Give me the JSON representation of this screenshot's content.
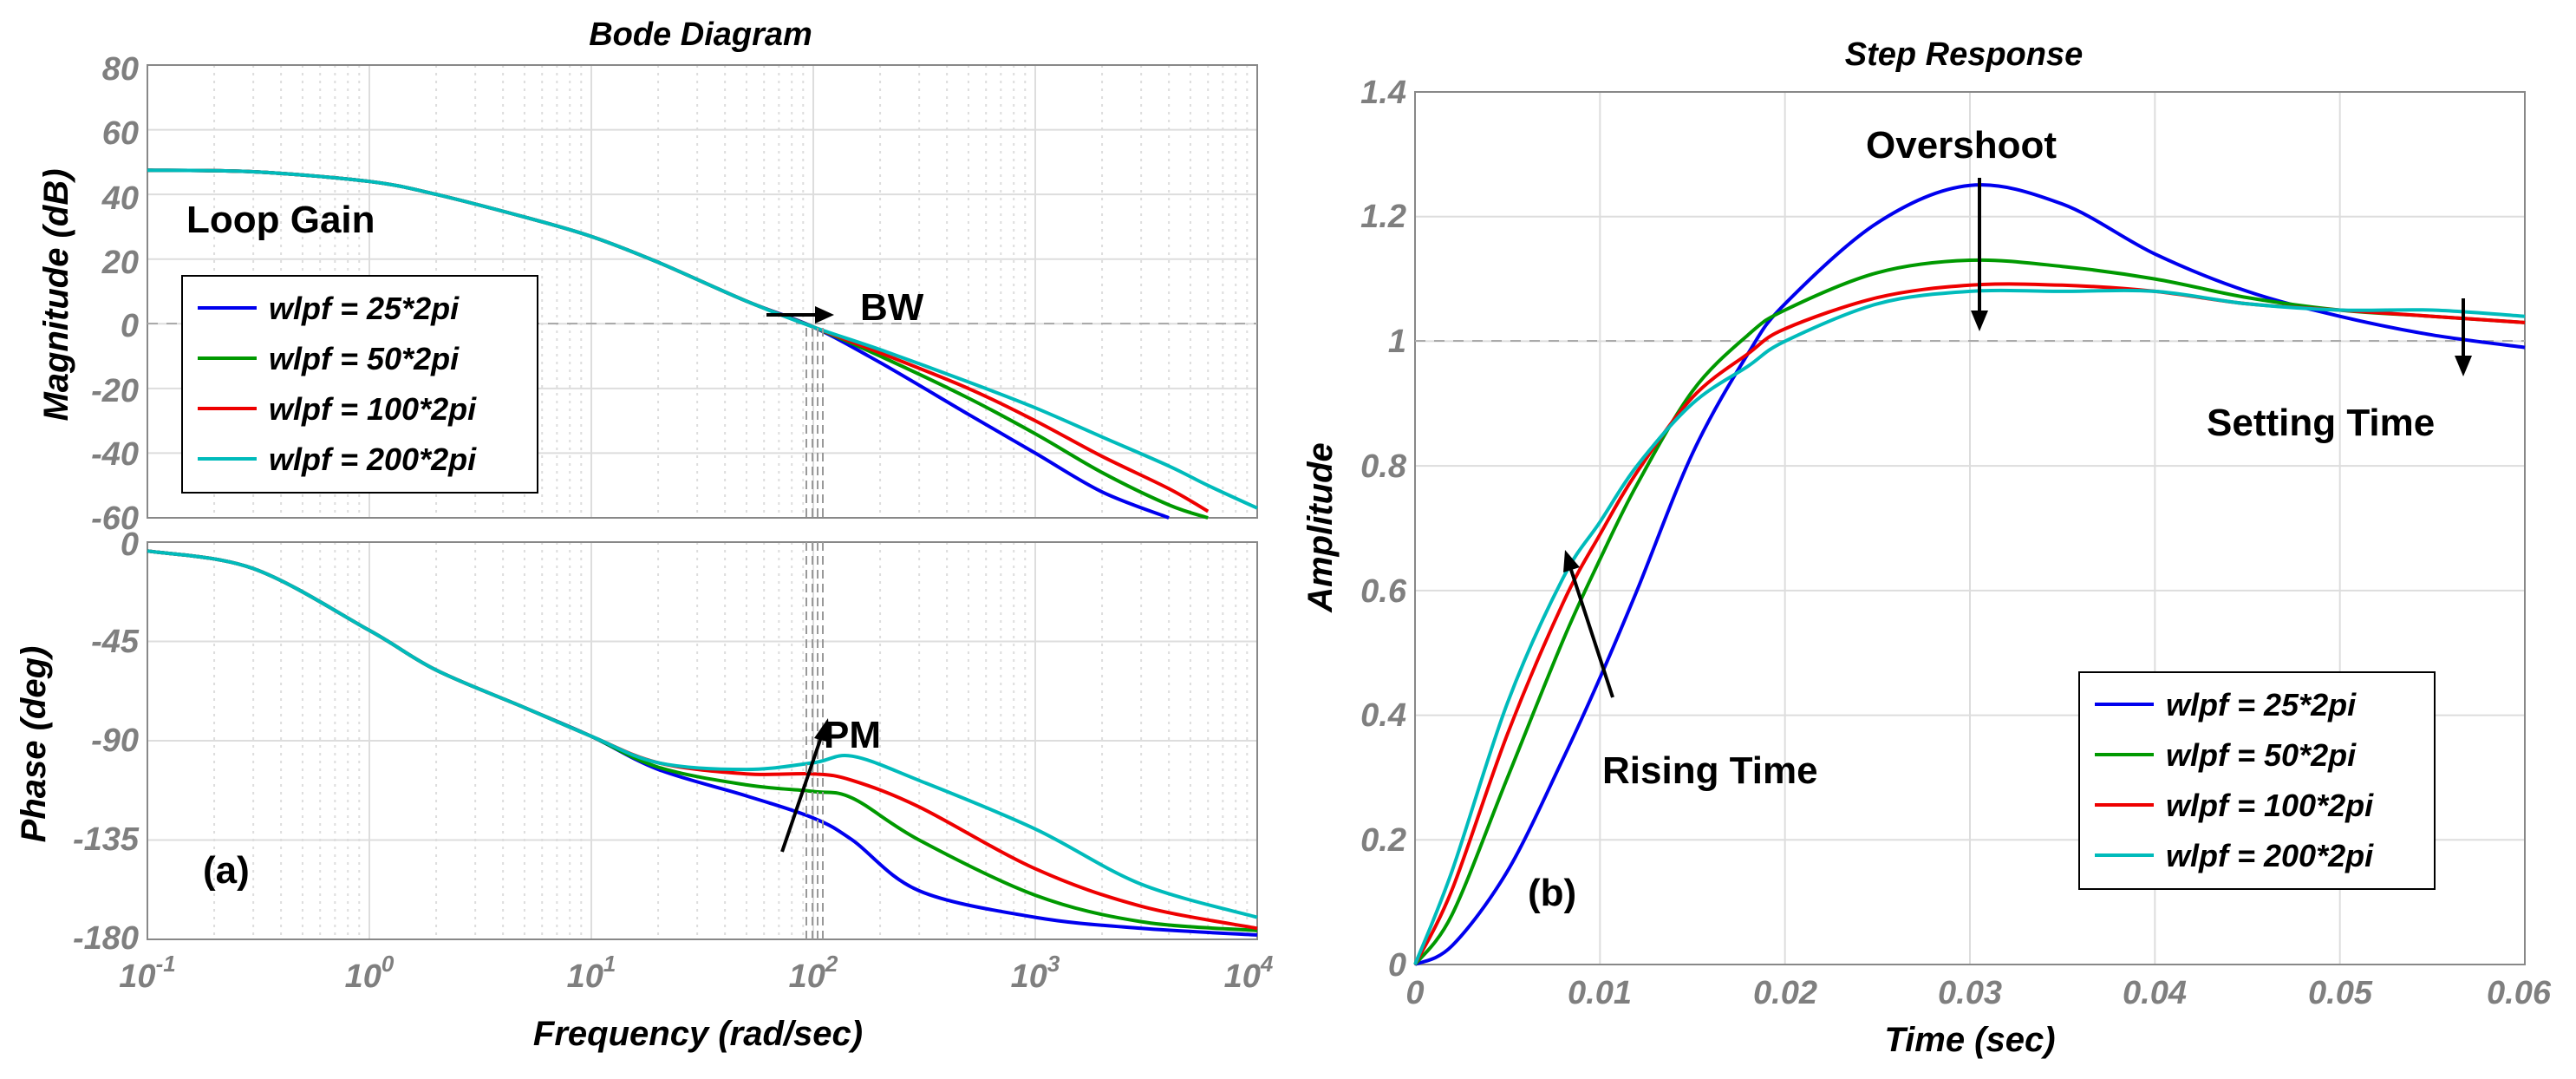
{
  "chart_data": [
    {
      "type": "line",
      "id": "bode-magnitude",
      "title": "Bode Diagram",
      "xlabel": "Frequency  (rad/sec)",
      "ylabel": "Magnitude (dB)",
      "xscale": "log",
      "xlim": [
        0.1,
        10000
      ],
      "ylim": [
        -60,
        80
      ],
      "yticks": [
        "80",
        "60",
        "40",
        "20",
        "0",
        "-20",
        "-40",
        "-60"
      ],
      "reference_line": {
        "y": 0
      },
      "x": [
        0.1,
        0.3,
        1,
        2,
        5,
        10,
        20,
        50,
        100,
        200,
        500,
        1000,
        2000,
        4000,
        6000,
        10000
      ],
      "series": [
        {
          "name": "wlpf = 25*2pi",
          "color": "#0000ee",
          "values": [
            47.5,
            47,
            44,
            40,
            33,
            27,
            19,
            7,
            -1,
            -12,
            -28,
            -40,
            -52,
            -60,
            null,
            null
          ]
        },
        {
          "name": "wlpf = 50*2pi",
          "color": "#009900",
          "values": [
            47.5,
            47,
            44,
            40,
            33,
            27,
            19,
            7,
            -1,
            -10,
            -23,
            -34,
            -46,
            -56,
            -60,
            null
          ]
        },
        {
          "name": "wlpf = 100*2pi",
          "color": "#ee0000",
          "values": [
            47.5,
            47,
            44,
            40,
            33,
            27,
            19,
            7,
            -1,
            -9,
            -20,
            -30,
            -41,
            -51,
            -58,
            null
          ]
        },
        {
          "name": "wlpf = 200*2pi",
          "color": "#00bbbb",
          "values": [
            47.5,
            47,
            44,
            40,
            33,
            27,
            19,
            7,
            -1,
            -8,
            -18,
            -26,
            -35,
            -44,
            -50,
            -57
          ]
        }
      ],
      "annotations": [
        "Loop Gain",
        "BW"
      ],
      "label": "(a)"
    },
    {
      "type": "line",
      "id": "bode-phase",
      "xlabel": "Frequency  (rad/sec)",
      "ylabel": "Phase (deg)",
      "xscale": "log",
      "xlim": [
        0.1,
        10000
      ],
      "ylim": [
        -180,
        0
      ],
      "yticks": [
        "0",
        "-45",
        "-90",
        "-135",
        "-180"
      ],
      "xticks": [
        {
          "base": "10",
          "exp": "-1"
        },
        {
          "base": "10",
          "exp": "0"
        },
        {
          "base": "10",
          "exp": "1"
        },
        {
          "base": "10",
          "exp": "2"
        },
        {
          "base": "10",
          "exp": "3"
        },
        {
          "base": "10",
          "exp": "4"
        }
      ],
      "x": [
        0.1,
        0.3,
        1,
        2,
        5,
        10,
        20,
        50,
        100,
        150,
        300,
        1000,
        3000,
        10000
      ],
      "series": [
        {
          "name": "wlpf = 25*2pi",
          "color": "#0000ee",
          "values": [
            -4,
            -12,
            -40,
            -58,
            -75,
            -88,
            -103,
            -115,
            -125,
            -135,
            -158,
            -170,
            -175,
            -178
          ]
        },
        {
          "name": "wlpf = 50*2pi",
          "color": "#009900",
          "values": [
            -4,
            -12,
            -40,
            -58,
            -75,
            -88,
            -102,
            -110,
            -113,
            -116,
            -135,
            -160,
            -172,
            -176
          ]
        },
        {
          "name": "wlpf = 100*2pi",
          "color": "#ee0000",
          "values": [
            -4,
            -12,
            -40,
            -58,
            -75,
            -88,
            -100,
            -105,
            -105,
            -108,
            -120,
            -148,
            -165,
            -175
          ]
        },
        {
          "name": "wlpf = 200*2pi",
          "color": "#00bbbb",
          "values": [
            -4,
            -12,
            -40,
            -58,
            -75,
            -88,
            -100,
            -103,
            -100,
            -97,
            -108,
            -130,
            -155,
            -170
          ]
        }
      ],
      "annotations": [
        "PM"
      ]
    },
    {
      "type": "line",
      "id": "step-response",
      "title": "Step Response",
      "xlabel": "Time (sec)",
      "ylabel": "Amplitude",
      "xlim": [
        0,
        0.06
      ],
      "ylim": [
        0,
        1.4
      ],
      "xticks": [
        "0",
        "0.01",
        "0.02",
        "0.03",
        "0.04",
        "0.05",
        "0.06"
      ],
      "yticks": [
        "0",
        "0.2",
        "0.4",
        "0.6",
        "0.8",
        "1",
        "1.2",
        "1.4"
      ],
      "reference_line": {
        "y": 1
      },
      "x": [
        0,
        0.002,
        0.005,
        0.008,
        0.01,
        0.012,
        0.015,
        0.018,
        0.02,
        0.025,
        0.03,
        0.035,
        0.04,
        0.045,
        0.05,
        0.055,
        0.06
      ],
      "series": [
        {
          "name": "wlpf = 25*2pi",
          "color": "#0000ee",
          "values": [
            0,
            0.03,
            0.15,
            0.33,
            0.46,
            0.6,
            0.82,
            0.98,
            1.06,
            1.19,
            1.25,
            1.22,
            1.14,
            1.08,
            1.04,
            1.01,
            0.99
          ]
        },
        {
          "name": "wlpf = 50*2pi",
          "color": "#009900",
          "values": [
            0,
            0.08,
            0.3,
            0.52,
            0.65,
            0.77,
            0.92,
            1.01,
            1.05,
            1.11,
            1.13,
            1.12,
            1.1,
            1.07,
            1.05,
            1.04,
            1.03
          ]
        },
        {
          "name": "wlpf = 100*2pi",
          "color": "#ee0000",
          "values": [
            0,
            0.12,
            0.37,
            0.58,
            0.69,
            0.79,
            0.91,
            0.98,
            1.02,
            1.07,
            1.09,
            1.09,
            1.08,
            1.06,
            1.05,
            1.04,
            1.03
          ]
        },
        {
          "name": "wlpf = 200*2pi",
          "color": "#00bbbb",
          "values": [
            0,
            0.15,
            0.42,
            0.62,
            0.71,
            0.8,
            0.9,
            0.96,
            1.0,
            1.06,
            1.08,
            1.08,
            1.08,
            1.06,
            1.05,
            1.05,
            1.04
          ]
        }
      ],
      "annotations": [
        "Overshoot",
        "Setting Time",
        "Rising Time"
      ],
      "label": "(b)"
    }
  ]
}
